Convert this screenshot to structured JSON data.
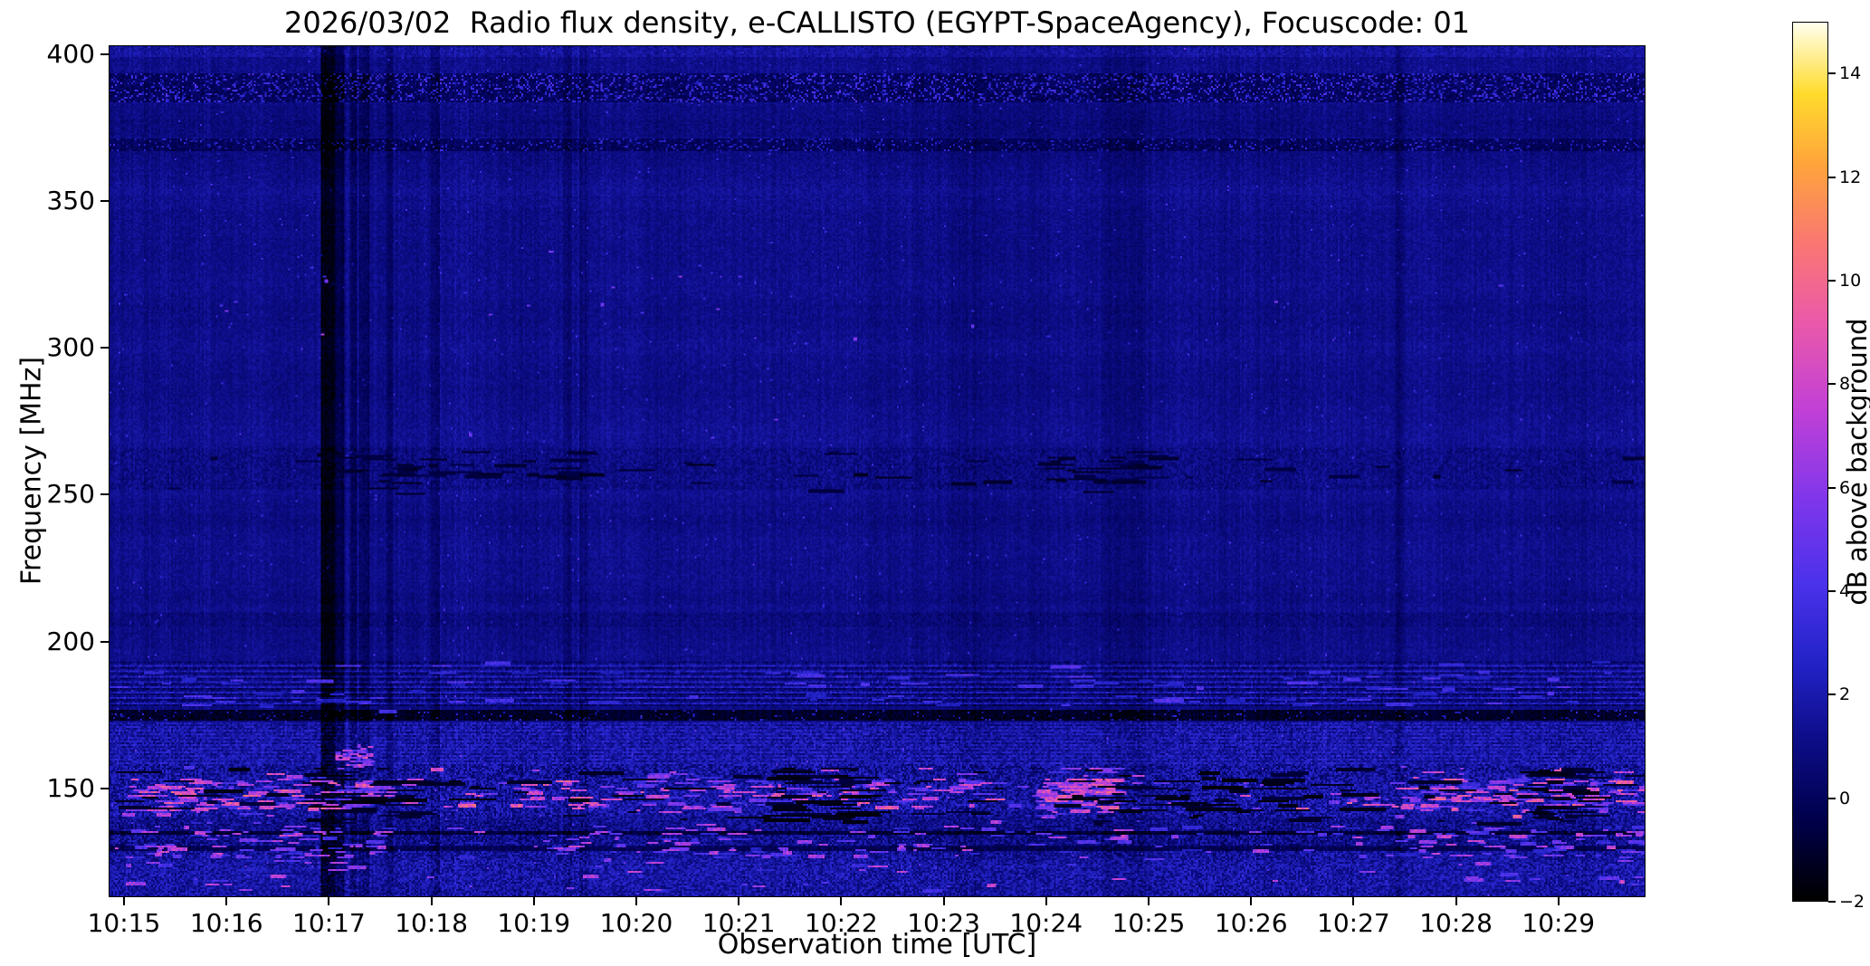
{
  "figure": {
    "background": "#ffffff",
    "text_color": "#000000"
  },
  "chart_data": {
    "type": "heatmap",
    "title": "2026/03/02  Radio flux density, e-CALLISTO (EGYPT-SpaceAgency), Focuscode: 01",
    "xlabel": "Observation time [UTC]",
    "ylabel": "Frequency [MHz]",
    "x_ticks": [
      "10:15",
      "10:16",
      "10:17",
      "10:18",
      "10:19",
      "10:20",
      "10:21",
      "10:22",
      "10:23",
      "10:24",
      "10:25",
      "10:26",
      "10:27",
      "10:28",
      "10:29"
    ],
    "x_start_utc": "10:15",
    "x_end_utc": "10:30",
    "y_ticks": [
      400,
      350,
      300,
      250,
      200,
      150
    ],
    "y_range": [
      113,
      403
    ],
    "grid": false,
    "colorbar": {
      "label": "dB above background",
      "ticks": [
        -2,
        0,
        2,
        4,
        6,
        8,
        10,
        12,
        14
      ],
      "tick_labels": [
        "−2",
        "0",
        "2",
        "4",
        "6",
        "8",
        "10",
        "12",
        "14"
      ],
      "range": [
        -2,
        15
      ],
      "colormap": "gnuplot2",
      "colormap_stops": [
        [
          0.0,
          0,
          0,
          0
        ],
        [
          0.09,
          0,
          0,
          75
        ],
        [
          0.18,
          13,
          13,
          135
        ],
        [
          0.27,
          35,
          35,
          200
        ],
        [
          0.36,
          75,
          50,
          235
        ],
        [
          0.46,
          130,
          55,
          235
        ],
        [
          0.56,
          195,
          65,
          215
        ],
        [
          0.66,
          235,
          90,
          170
        ],
        [
          0.75,
          250,
          120,
          115
        ],
        [
          0.84,
          255,
          165,
          60
        ],
        [
          0.92,
          255,
          220,
          45
        ],
        [
          1.0,
          255,
          255,
          235
        ]
      ]
    },
    "background_level_db": 1.15,
    "features": [
      {
        "type": "vertical-interference-lines",
        "time_utc": "10:17",
        "description": "dark calibration/interference lines spanning all frequencies"
      },
      {
        "type": "rfi-burst-band",
        "freq_mhz": [
          113,
          158
        ],
        "description": "strong broadband RFI with magenta/pink bursts, brightest at 143-153 MHz"
      },
      {
        "type": "striped-interference-band",
        "freq_mhz": [
          178,
          193
        ],
        "description": "horizontally striped bright/dark channel band"
      },
      {
        "type": "dark-channel-line",
        "freq_mhz": 175
      },
      {
        "type": "speckled-dark-rows",
        "freq_mhz": [
          384,
          394
        ]
      },
      {
        "type": "quiet-background",
        "freq_mhz": [
          195,
          365
        ],
        "description": "uniform dark-blue background around 0-1.5 dB"
      }
    ],
    "render_hints": {
      "seed": 1337,
      "x_offset_min": 0.15,
      "x_span_min": 15,
      "bands": [
        {
          "f": [
            399,
            403.5
          ],
          "offset": 0.5,
          "noise": 0.6
        },
        {
          "f": [
            384,
            394
          ],
          "offset": -1.0,
          "noise": 0.6,
          "speckle": {
            "p": 0.2,
            "amp": 3.0
          }
        },
        {
          "f": [
            372,
            378
          ],
          "offset": -0.25,
          "noise": 0.5
        },
        {
          "f": [
            367,
            371.5
          ],
          "offset": -0.95,
          "noise": 0.5,
          "speckle": {
            "p": 0.12,
            "amp": 2.4
          }
        },
        {
          "f": [
            252,
            266
          ],
          "offset": -0.3,
          "noise": 0.7
        },
        {
          "f": [
            205,
            210
          ],
          "offset": -0.45,
          "noise": 0.55
        },
        {
          "f": [
            178,
            193
          ],
          "offset": 0.15,
          "noise": 0.9,
          "stripe": {
            "period": 3,
            "hi": 1.0,
            "lo": -0.9
          }
        },
        {
          "f": [
            173,
            176.5
          ],
          "offset": -2.2,
          "noise": 0.5,
          "speckle": {
            "p": 0.05,
            "amp": 3.2
          }
        },
        {
          "f": [
            158,
            172
          ],
          "offset": 0.65,
          "noise": 1.1,
          "stripe": {
            "period": 2,
            "hi": 0.3,
            "lo": -0.3
          }
        },
        {
          "f": [
            140,
            158
          ],
          "offset": 0.3,
          "noise": 1.5
        },
        {
          "f": [
            135,
            140
          ],
          "offset": 0.1,
          "noise": 1.2
        },
        {
          "f": [
            133.8,
            135.3
          ],
          "offset": -1.7,
          "noise": 0.6
        },
        {
          "f": [
            129.5,
            133.8
          ],
          "offset": 0.2,
          "noise": 1.3
        },
        {
          "f": [
            128.6,
            130.1
          ],
          "offset": -1.2,
          "noise": 0.6
        },
        {
          "f": [
            113,
            128.6
          ],
          "offset": 0.5,
          "noise": 1.25
        }
      ],
      "vertical_lines": [
        {
          "t": [
            1.93,
            2.03
          ],
          "depth": 2.6
        },
        {
          "t": [
            2.06,
            2.12
          ],
          "depth": 1.5
        },
        {
          "t": [
            2.2,
            2.24
          ],
          "depth": 1.1
        },
        {
          "t": [
            2.3,
            2.36
          ],
          "depth": 0.9
        },
        {
          "t": [
            2.55,
            2.6
          ],
          "depth": 0.7
        },
        {
          "t": [
            3.0,
            3.05
          ],
          "depth": 0.8
        },
        {
          "t": [
            4.28,
            4.34
          ],
          "depth": 0.7
        },
        {
          "t": [
            4.45,
            4.5
          ],
          "depth": 0.55
        },
        {
          "t": [
            8.05,
            8.35
          ],
          "depth": 0.4
        },
        {
          "t": [
            9.55,
            9.95
          ],
          "depth": 0.45
        },
        {
          "t": [
            12.42,
            12.47
          ],
          "depth": 0.65
        }
      ],
      "segments": [
        {
          "mode": "bright",
          "count": 700,
          "f_range": [
            140,
            157
          ],
          "f_peak": [
            143,
            153
          ],
          "peak_prob": 0.75,
          "len_min": [
            0.02,
            0.22
          ],
          "amp_db": [
            3,
            9.5
          ],
          "time_clusters": [
            [
              0,
              2.4
            ],
            [
              3.8,
              8.4
            ],
            [
              8.9,
              9.6
            ],
            [
              12.4,
              14.9
            ]
          ],
          "cluster_prob": 0.75
        },
        {
          "mode": "bright",
          "count": 380,
          "f_range": [
            115,
            139
          ],
          "f_peak": [
            126,
            137
          ],
          "peak_prob": 0.7,
          "len_min": [
            0.02,
            0.18
          ],
          "amp_db": [
            2.5,
            8
          ],
          "time_clusters": [
            [
              0,
              2.5
            ],
            [
              4.0,
              8.5
            ],
            [
              12.3,
              14.9
            ]
          ],
          "cluster_prob": 0.6
        },
        {
          "mode": "bright",
          "count": 45,
          "f_range": [
            155,
            166
          ],
          "f_peak": [
            157,
            163
          ],
          "peak_prob": 0.8,
          "len_min": [
            0.01,
            0.07
          ],
          "amp_db": [
            4,
            9
          ],
          "time_clusters": [
            [
              2.05,
              2.4
            ]
          ],
          "cluster_prob": 0.97
        },
        {
          "mode": "bright",
          "count": 120,
          "f_range": [
            176,
            193
          ],
          "f_peak": [
            178,
            190
          ],
          "peak_prob": 0.7,
          "len_min": [
            0.02,
            0.3
          ],
          "amp_db": [
            2.2,
            4.5
          ],
          "time_clusters": [
            [
              0,
              14.9
            ]
          ],
          "cluster_prob": 0.5
        },
        {
          "mode": "bright",
          "count": 28,
          "f_range": [
            265,
            335
          ],
          "f_peak": [
            300,
            325
          ],
          "peak_prob": 0.6,
          "len_min": [
            0.005,
            0.03
          ],
          "amp_db": [
            3,
            6.5
          ],
          "time_clusters": [
            [
              0.8,
              7.5
            ]
          ],
          "cluster_prob": 0.7
        },
        {
          "mode": "dark",
          "count": 260,
          "f_range": [
            138,
            157
          ],
          "f_peak": [
            140,
            156
          ],
          "peak_prob": 0.5,
          "len_min": [
            0.05,
            0.45
          ],
          "amp_db": [
            -1.8,
            -0.6
          ],
          "time_clusters": [
            [
              1.7,
              2.7
            ],
            [
              6.2,
              7.1
            ],
            [
              9.2,
              11.4
            ],
            [
              13.6,
              14.2
            ]
          ],
          "cluster_prob": 0.6
        },
        {
          "mode": "dark",
          "count": 120,
          "f_range": [
            250,
            266
          ],
          "f_peak": [
            254,
            263
          ],
          "peak_prob": 0.6,
          "len_min": [
            0.05,
            0.35
          ],
          "amp_db": [
            -1.3,
            -0.4
          ],
          "time_clusters": [
            [
              1.8,
              4.6
            ],
            [
              8.9,
              9.9
            ]
          ],
          "cluster_prob": 0.75
        }
      ]
    }
  }
}
